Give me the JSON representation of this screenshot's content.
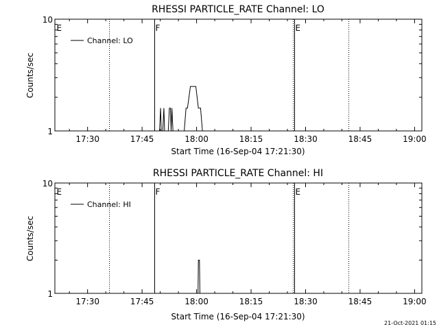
{
  "footer_timestamp": "21-Oct-2021 01:15",
  "chart_data": [
    {
      "type": "line",
      "title": "RHESSI PARTICLE_RATE Channel: LO",
      "xlabel": "Start Time (16-Sep-04 17:21:30)",
      "ylabel": "Counts/sec",
      "y_scale": "log",
      "ylim": [
        1,
        10
      ],
      "y_ticks": [
        1,
        10
      ],
      "y_tick_labels": [
        "1",
        "10"
      ],
      "x_ticks_min": [
        9,
        24,
        39,
        54,
        69,
        84,
        99
      ],
      "x_tick_labels": [
        "17:30",
        "17:45",
        "18:00",
        "18:15",
        "18:30",
        "18:45",
        "19:00"
      ],
      "x_range_min": [
        0,
        101
      ],
      "legend": {
        "label": "Channel: LO",
        "position": "top-left"
      },
      "markers": [
        {
          "t": 0.2,
          "label": "E",
          "style": "none"
        },
        {
          "t": 15.0,
          "label": "",
          "style": "dotted"
        },
        {
          "t": 27.3,
          "label": "F",
          "style": "solid"
        },
        {
          "t": 65.8,
          "label": "E",
          "style": "dotted-solid"
        },
        {
          "t": 80.8,
          "label": "",
          "style": "dotted"
        }
      ],
      "series": [
        {
          "values": [
            [
              0,
              1
            ],
            [
              28.8,
              1
            ],
            [
              29.1,
              1.6
            ],
            [
              29.3,
              1
            ],
            [
              29.7,
              1
            ],
            [
              30.0,
              1.6
            ],
            [
              30.2,
              1
            ],
            [
              31.2,
              1
            ],
            [
              31.5,
              1.6
            ],
            [
              31.8,
              1.6
            ],
            [
              32.0,
              1
            ],
            [
              32.2,
              1.6
            ],
            [
              32.5,
              1
            ],
            [
              35.6,
              1
            ],
            [
              36.1,
              1.6
            ],
            [
              36.5,
              1.6
            ],
            [
              37.3,
              2.5
            ],
            [
              38.8,
              2.5
            ],
            [
              39.5,
              1.6
            ],
            [
              40.1,
              1.6
            ],
            [
              40.6,
              1
            ],
            [
              101,
              1
            ]
          ]
        }
      ]
    },
    {
      "type": "line",
      "title": "RHESSI PARTICLE_RATE Channel: HI",
      "xlabel": "Start Time (16-Sep-04 17:21:30)",
      "ylabel": "Counts/sec",
      "y_scale": "log",
      "ylim": [
        1,
        10
      ],
      "y_ticks": [
        1,
        10
      ],
      "y_tick_labels": [
        "1",
        "10"
      ],
      "x_ticks_min": [
        9,
        24,
        39,
        54,
        69,
        84,
        99
      ],
      "x_tick_labels": [
        "17:30",
        "17:45",
        "18:00",
        "18:15",
        "18:30",
        "18:45",
        "19:00"
      ],
      "x_range_min": [
        0,
        101
      ],
      "legend": {
        "label": "Channel: HI",
        "position": "top-left"
      },
      "markers": [
        {
          "t": 0.2,
          "label": "E",
          "style": "none"
        },
        {
          "t": 15.0,
          "label": "",
          "style": "dotted"
        },
        {
          "t": 27.3,
          "label": "F",
          "style": "solid"
        },
        {
          "t": 65.8,
          "label": "E",
          "style": "dotted-solid"
        },
        {
          "t": 80.8,
          "label": "",
          "style": "dotted"
        }
      ],
      "series": [
        {
          "values": [
            [
              0,
              1
            ],
            [
              39.4,
              1
            ],
            [
              39.5,
              2.0
            ],
            [
              39.8,
              2.0
            ],
            [
              39.9,
              1
            ],
            [
              101,
              1
            ]
          ]
        }
      ]
    }
  ]
}
